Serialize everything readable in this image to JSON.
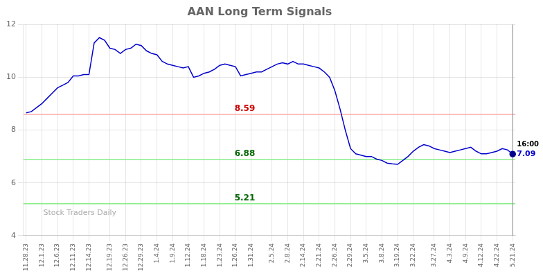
{
  "chart_data": {
    "type": "line",
    "title": "AAN Long Term Signals",
    "categories": [
      "11.28.23",
      null,
      null,
      "12.1.23",
      null,
      null,
      "12.6.23",
      null,
      null,
      "12.11.23",
      null,
      null,
      "12.14.23",
      null,
      null,
      null,
      "12.19.23",
      null,
      null,
      "12.26.23",
      null,
      null,
      "12.29.23",
      null,
      null,
      "1.4.24",
      null,
      null,
      "1.9.24",
      null,
      null,
      "1.12.24",
      null,
      null,
      "1.18.24",
      null,
      null,
      "1.23.24",
      null,
      null,
      "1.26.24",
      null,
      null,
      "1.31.24",
      null,
      null,
      null,
      "2.5.24",
      null,
      null,
      "2.8.24",
      null,
      null,
      "2.14.24",
      null,
      null,
      "2.21.24",
      null,
      null,
      "2.26.24",
      null,
      null,
      "2.29.24",
      null,
      null,
      "3.5.24",
      null,
      null,
      "3.8.24",
      null,
      null,
      "3.19.24",
      null,
      null,
      "3.22.24",
      null,
      null,
      null,
      "3.27.24",
      null,
      null,
      "4.3.24",
      null,
      null,
      "4.9.24",
      null,
      null,
      "4.12.24",
      null,
      null,
      "4.22.24",
      null,
      null,
      "5.21.24"
    ],
    "values": [
      8.65,
      8.7,
      8.85,
      9.0,
      9.2,
      9.4,
      9.6,
      9.7,
      9.8,
      10.05,
      10.05,
      10.1,
      10.1,
      11.3,
      11.5,
      11.4,
      11.1,
      11.05,
      10.9,
      11.05,
      11.1,
      11.25,
      11.2,
      11.0,
      10.9,
      10.85,
      10.6,
      10.5,
      10.45,
      10.4,
      10.35,
      10.4,
      10.0,
      10.05,
      10.15,
      10.2,
      10.3,
      10.45,
      10.5,
      10.45,
      10.4,
      10.05,
      10.1,
      10.15,
      10.2,
      10.2,
      10.3,
      10.4,
      10.5,
      10.55,
      10.5,
      10.6,
      10.5,
      10.5,
      10.45,
      10.4,
      10.35,
      10.2,
      10.0,
      9.5,
      8.8,
      8.0,
      7.3,
      7.1,
      7.05,
      7.0,
      7.0,
      6.9,
      6.85,
      6.75,
      6.72,
      6.7,
      6.85,
      7.0,
      7.2,
      7.35,
      7.45,
      7.4,
      7.3,
      7.25,
      7.2,
      7.15,
      7.2,
      7.25,
      7.3,
      7.35,
      7.2,
      7.1,
      7.1,
      7.15,
      7.2,
      7.3,
      7.25,
      7.09
    ],
    "color": "#0000cc",
    "ylim": [
      4,
      12
    ],
    "yticks": [
      4,
      6,
      8,
      10,
      12
    ],
    "grid": true,
    "hlines": [
      {
        "value": 8.59,
        "color": "#ffaaaa",
        "label_color": "#cc0000"
      },
      {
        "value": 6.88,
        "color": "#88ee88",
        "label_color": "#006600"
      },
      {
        "value": 5.21,
        "color": "#88ee88",
        "label_color": "#006600"
      }
    ],
    "last_point": {
      "time": "16:00",
      "label": "7.09",
      "color": "#00008B",
      "vline_color": "#888888"
    },
    "watermark": {
      "text": "Stock Traders Daily",
      "color": "#aaaaaa"
    }
  }
}
